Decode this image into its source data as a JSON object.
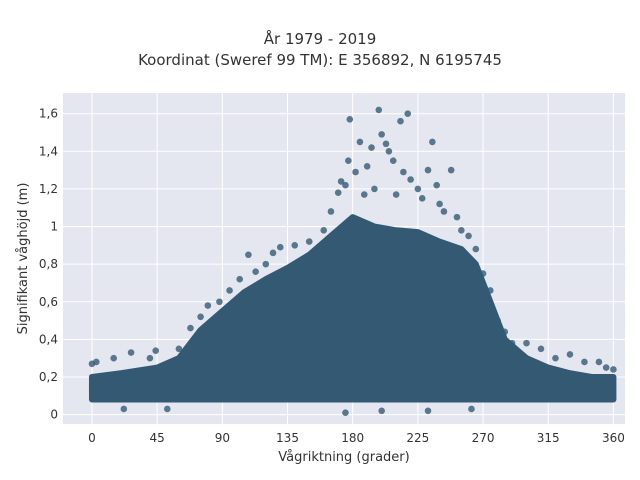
{
  "chart_data": {
    "type": "scatter",
    "title": "År 1979 - 2019",
    "subtitle": "Koordinat (Sweref 99 TM): E 356892, N 6195745",
    "xlabel": "Vågriktning (grader)",
    "ylabel": "Signifikant våghöjd (m)",
    "xlim": [
      -20,
      368
    ],
    "ylim": [
      -0.05,
      1.71
    ],
    "xticks": [
      0,
      45,
      90,
      135,
      180,
      225,
      270,
      315,
      360
    ],
    "yticks": [
      0,
      0.2,
      0.4,
      0.6,
      0.8,
      1,
      1.2,
      1.4,
      1.6
    ],
    "xtick_labels": [
      "0",
      "45",
      "90",
      "135",
      "180",
      "225",
      "270",
      "315",
      "360"
    ],
    "ytick_labels": [
      "0",
      "0,2",
      "0,4",
      "0,6",
      "0,8",
      "1",
      "1,2",
      "1,4",
      "1,6"
    ],
    "grid": true,
    "background": "#e5e7f0",
    "marker_color": "#345a73",
    "envelope": {
      "x": [
        0,
        20,
        45,
        60,
        75,
        90,
        105,
        120,
        135,
        150,
        165,
        180,
        195,
        210,
        225,
        240,
        255,
        265,
        275,
        285,
        300,
        315,
        330,
        345,
        360
      ],
      "upper": [
        0.2,
        0.22,
        0.25,
        0.3,
        0.45,
        0.55,
        0.65,
        0.72,
        0.78,
        0.85,
        0.95,
        1.05,
        1.0,
        0.98,
        0.97,
        0.92,
        0.88,
        0.8,
        0.6,
        0.4,
        0.3,
        0.25,
        0.22,
        0.2,
        0.2
      ],
      "lower": [
        0.08,
        0.08,
        0.08,
        0.08,
        0.08,
        0.08,
        0.08,
        0.08,
        0.08,
        0.08,
        0.08,
        0.08,
        0.08,
        0.08,
        0.08,
        0.08,
        0.08,
        0.08,
        0.08,
        0.08,
        0.08,
        0.08,
        0.08,
        0.08,
        0.08
      ]
    },
    "points": [
      [
        0,
        0.27
      ],
      [
        3,
        0.28
      ],
      [
        15,
        0.3
      ],
      [
        27,
        0.33
      ],
      [
        40,
        0.3
      ],
      [
        44,
        0.34
      ],
      [
        60,
        0.35
      ],
      [
        68,
        0.46
      ],
      [
        75,
        0.52
      ],
      [
        80,
        0.58
      ],
      [
        88,
        0.6
      ],
      [
        95,
        0.66
      ],
      [
        102,
        0.72
      ],
      [
        108,
        0.85
      ],
      [
        113,
        0.76
      ],
      [
        120,
        0.8
      ],
      [
        125,
        0.86
      ],
      [
        130,
        0.89
      ],
      [
        140,
        0.9
      ],
      [
        150,
        0.92
      ],
      [
        160,
        0.98
      ],
      [
        165,
        1.08
      ],
      [
        170,
        1.18
      ],
      [
        172,
        1.24
      ],
      [
        175,
        1.22
      ],
      [
        177,
        1.35
      ],
      [
        178,
        1.57
      ],
      [
        182,
        1.29
      ],
      [
        185,
        1.45
      ],
      [
        188,
        1.17
      ],
      [
        190,
        1.32
      ],
      [
        193,
        1.42
      ],
      [
        195,
        1.2
      ],
      [
        198,
        1.62
      ],
      [
        200,
        1.49
      ],
      [
        203,
        1.44
      ],
      [
        205,
        1.4
      ],
      [
        208,
        1.35
      ],
      [
        210,
        1.17
      ],
      [
        213,
        1.56
      ],
      [
        215,
        1.29
      ],
      [
        218,
        1.6
      ],
      [
        220,
        1.25
      ],
      [
        225,
        1.2
      ],
      [
        228,
        1.15
      ],
      [
        232,
        1.3
      ],
      [
        235,
        1.45
      ],
      [
        238,
        1.22
      ],
      [
        240,
        1.12
      ],
      [
        243,
        1.08
      ],
      [
        248,
        1.3
      ],
      [
        252,
        1.05
      ],
      [
        255,
        0.98
      ],
      [
        260,
        0.95
      ],
      [
        265,
        0.88
      ],
      [
        270,
        0.75
      ],
      [
        275,
        0.66
      ],
      [
        280,
        0.5
      ],
      [
        285,
        0.44
      ],
      [
        290,
        0.38
      ],
      [
        300,
        0.38
      ],
      [
        310,
        0.35
      ],
      [
        320,
        0.3
      ],
      [
        330,
        0.32
      ],
      [
        340,
        0.28
      ],
      [
        350,
        0.28
      ],
      [
        355,
        0.25
      ],
      [
        360,
        0.24
      ],
      [
        22,
        0.03
      ],
      [
        52,
        0.03
      ],
      [
        175,
        0.01
      ],
      [
        200,
        0.02
      ],
      [
        232,
        0.02
      ],
      [
        262,
        0.03
      ]
    ]
  }
}
